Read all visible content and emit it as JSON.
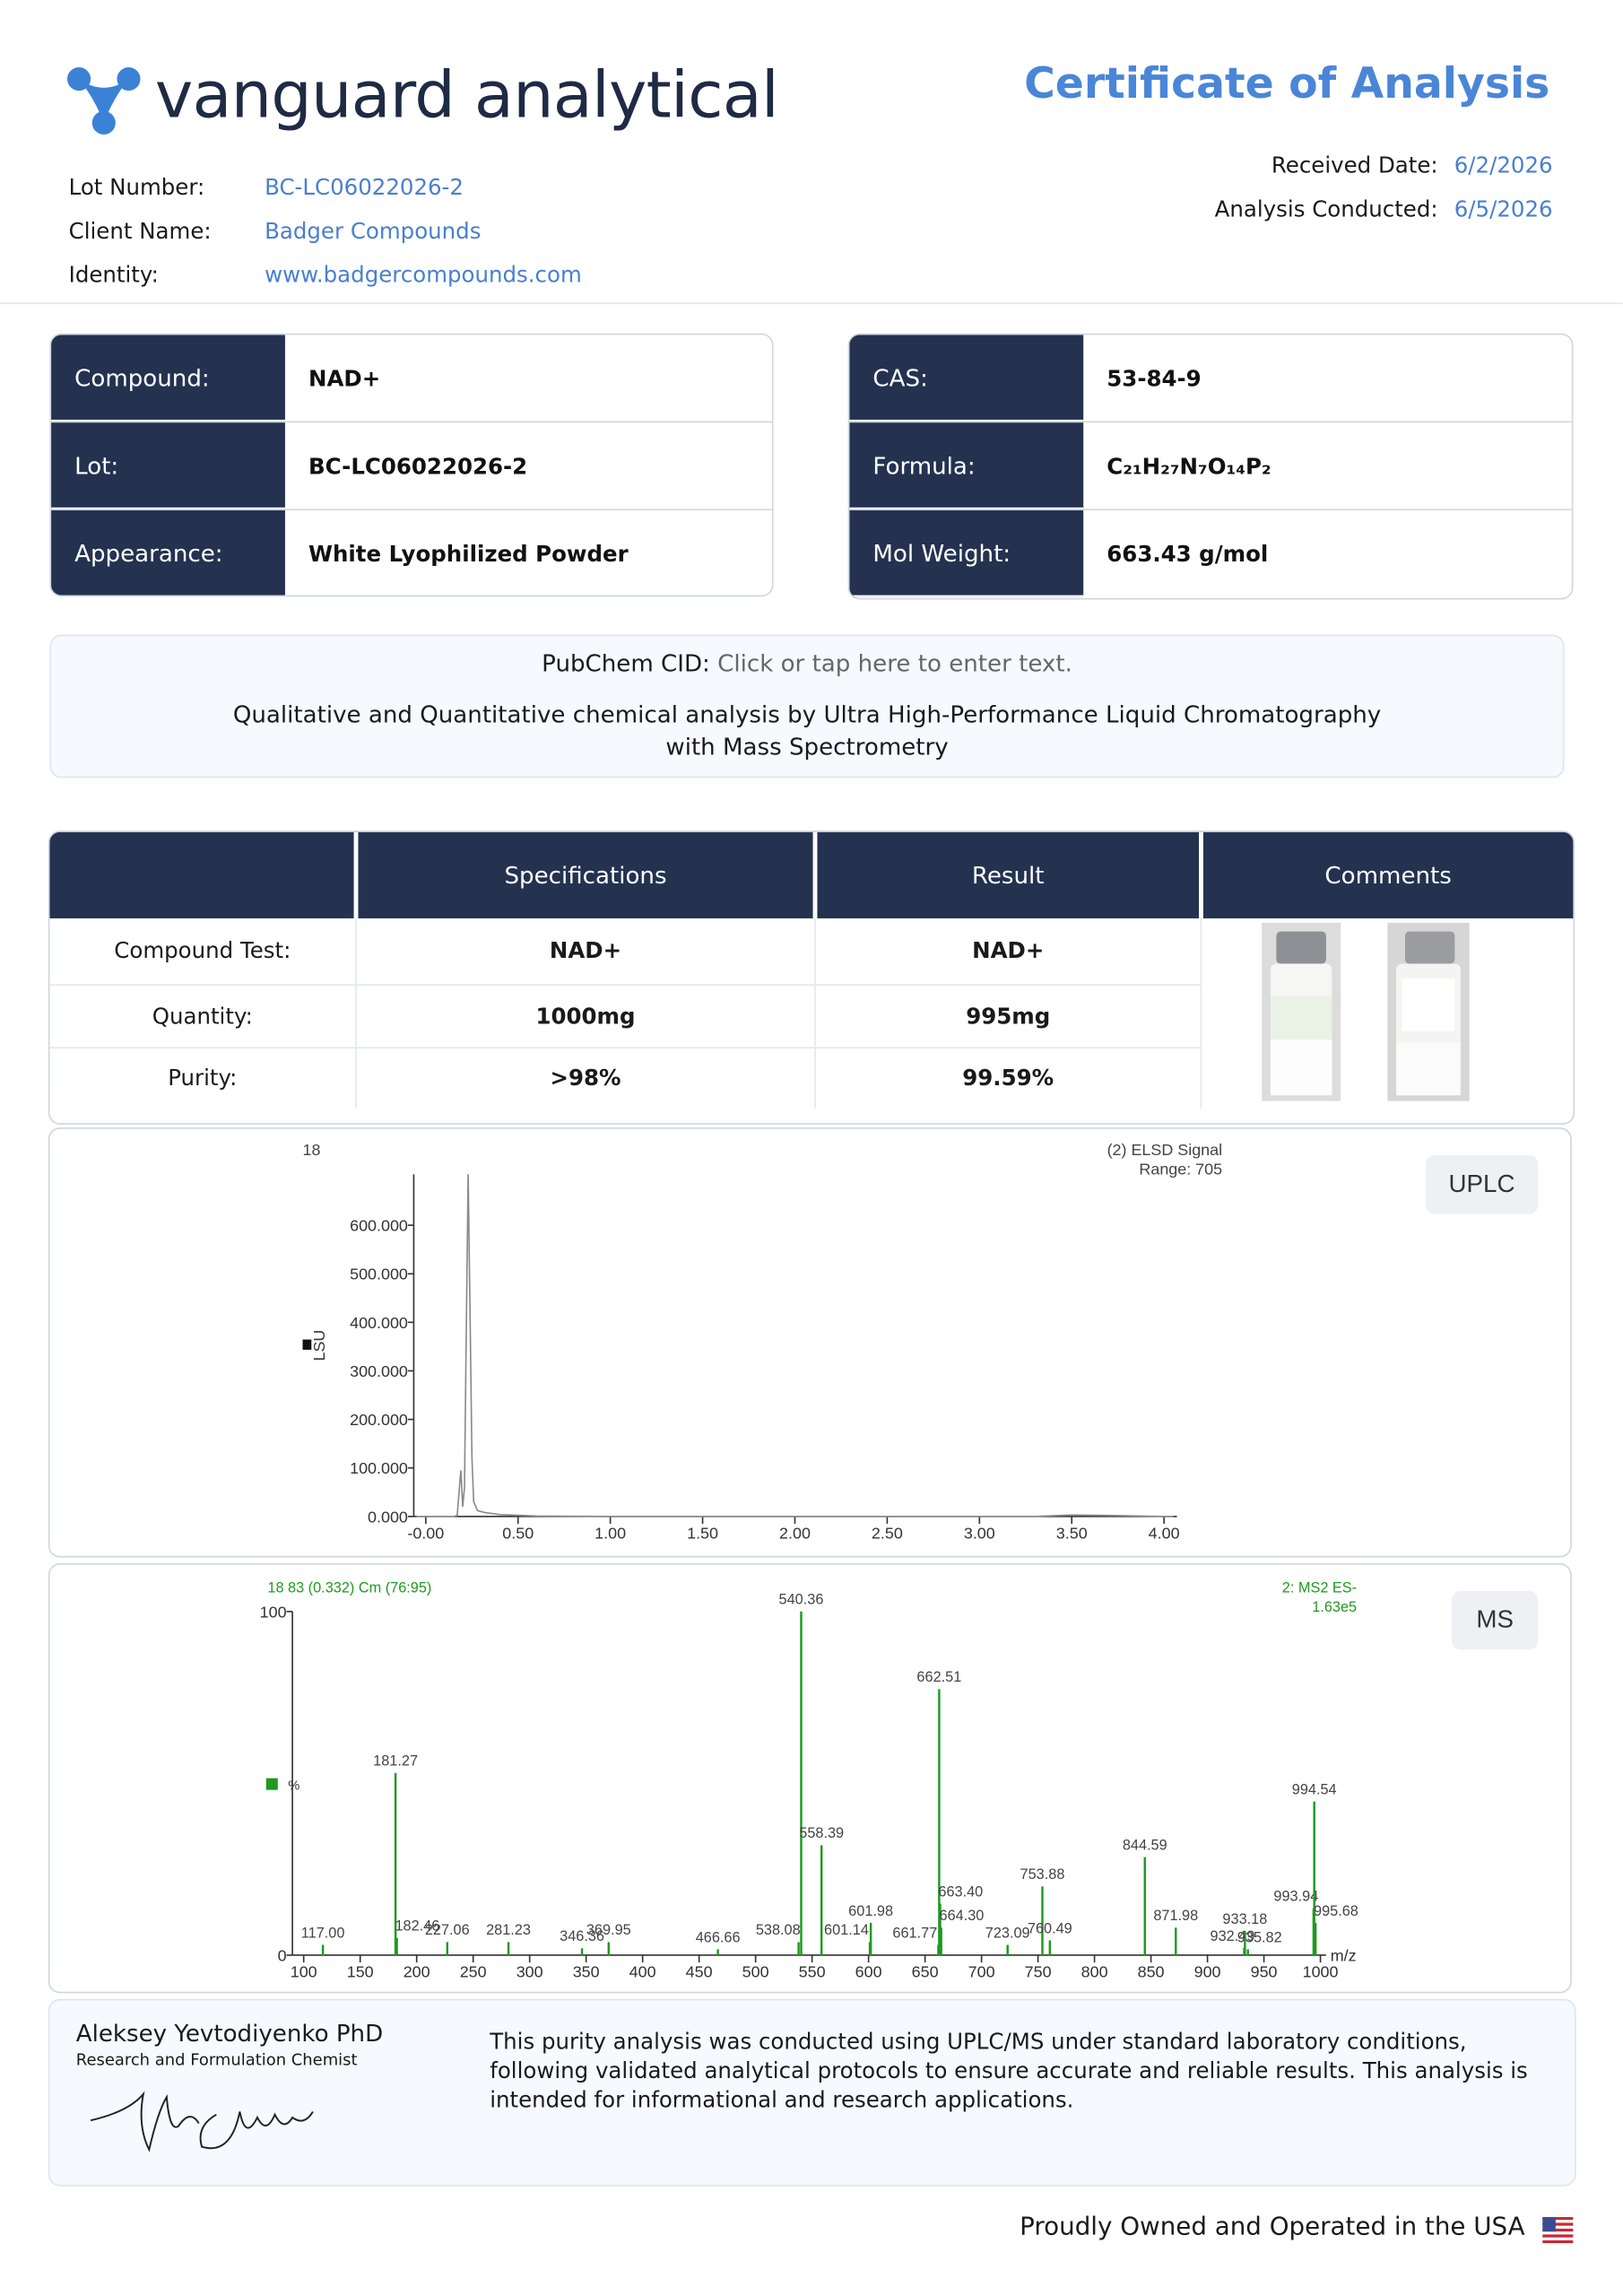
{
  "header": {
    "logo": "vanguard analytical",
    "title": "Certificate of Analysis",
    "fields": [
      {
        "label": "Lot Number:",
        "value": "BC-LC06022026-2"
      },
      {
        "label": "Client Name:",
        "value": "Badger Compounds"
      },
      {
        "label": "Identity:",
        "value": "www.badgercompounds.com"
      }
    ],
    "dates": [
      {
        "label": "Received Date:",
        "value": "6/2/2026"
      },
      {
        "label": "Analysis Conducted:",
        "value": "6/5/2026"
      }
    ]
  },
  "properties": {
    "left": [
      {
        "label": "Compound:",
        "value": "NAD+"
      },
      {
        "label": "Lot:",
        "value": "BC-LC06022026-2"
      },
      {
        "label": "Appearance:",
        "value": "White Lyophilized Powder"
      }
    ],
    "right": [
      {
        "label": "CAS:",
        "value": "53-84-9"
      },
      {
        "label": "Formula:",
        "value": "C₂₁H₂₇N₇O₁₄P₂"
      },
      {
        "label": "Mol Weight:",
        "value": "663.43 g/mol"
      }
    ]
  },
  "pubchem": {
    "label": "PubChem CID:",
    "value": "Click or tap here to enter text."
  },
  "method": "Qualitative and Quantitative chemical analysis by Ultra High-Performance Liquid Chromatography with Mass Spectrometry",
  "results": {
    "headers": [
      "Specifications",
      "Result",
      "Comments"
    ],
    "rows": [
      [
        "Compound Test:",
        "NAD+",
        "NAD+"
      ],
      [
        "Quantity:",
        "1000mg",
        "995mg"
      ],
      [
        "Purity:",
        ">98%",
        "99.59%"
      ]
    ]
  },
  "uplc": {
    "tag": "UPLC",
    "type": "line",
    "run": "18",
    "signal": "(2) ELSD Signal",
    "range": "Range: 705",
    "ylabel": "LSU",
    "color": "#8a8a8a",
    "x": [
      -0.05,
      0.15,
      0.17,
      0.19,
      0.2,
      0.21,
      0.22,
      0.23,
      0.24,
      0.25,
      0.26,
      0.28,
      0.32,
      0.4,
      0.6,
      1.0,
      2.0,
      3.3,
      3.5,
      3.7,
      4.0,
      4.05
    ],
    "values": [
      0,
      0,
      2,
      95,
      20,
      60,
      400,
      705,
      420,
      120,
      30,
      12,
      8,
      4,
      1,
      0,
      0,
      0,
      3,
      2,
      0,
      0
    ],
    "xlim": [
      -0.065,
      4.07
    ],
    "ylim": [
      0,
      705
    ],
    "xticks": [
      {
        "value": 0,
        "label": "-0.00"
      },
      {
        "value": 0.5,
        "label": "0.50"
      },
      {
        "value": 1,
        "label": "1.00"
      },
      {
        "value": 1.5,
        "label": "1.50"
      },
      {
        "value": 2,
        "label": "2.00"
      },
      {
        "value": 2.5,
        "label": "2.50"
      },
      {
        "value": 3,
        "label": "3.00"
      },
      {
        "value": 3.5,
        "label": "3.50"
      },
      {
        "value": 4,
        "label": "4.00"
      }
    ],
    "yticks": [
      {
        "value": 0,
        "label": "0.000"
      },
      {
        "value": 100,
        "label": "100.000"
      },
      {
        "value": 200,
        "label": "200.000"
      },
      {
        "value": 300,
        "label": "300.000"
      },
      {
        "value": 400,
        "label": "400.000"
      },
      {
        "value": 500,
        "label": "500.000"
      },
      {
        "value": 600,
        "label": "600.000"
      }
    ]
  },
  "ms": {
    "tag": "MS",
    "type": "bar",
    "run": "18 83 (0.332) Cm (76:95)",
    "scan": "2: MS2 ES-",
    "intensity": "1.63e5",
    "ylabel": "%",
    "xlabel": "m/z",
    "color": "#1f9a1f",
    "x": [
      117.0,
      181.27,
      182.46,
      227.06,
      281.23,
      346.36,
      369.95,
      466.66,
      538.08,
      540.36,
      558.39,
      601.14,
      601.98,
      661.77,
      662.51,
      663.4,
      664.3,
      723.09,
      753.88,
      760.49,
      844.59,
      871.98,
      932.49,
      933.18,
      935.82,
      993.94,
      994.54,
      995.68
    ],
    "x_labels": [
      "117.00",
      "181.27",
      "182.46",
      "227.06",
      "281.23",
      "346.36",
      "369.95",
      "466.66",
      "538.08",
      "540.36",
      "558.39",
      "601.14",
      "601.98",
      "661.77",
      "662.51",
      "663.40",
      "664.30",
      "723.09",
      "753.88",
      "760.49",
      "844.59",
      "871.98",
      "932.49",
      "933.18",
      "935.82",
      "993.94",
      "994.54",
      "995.68"
    ],
    "values": [
      3,
      53,
      5,
      3.8,
      3.8,
      2,
      3.8,
      1.7,
      3.8,
      100,
      32,
      3.8,
      9.4,
      3,
      77.4,
      15,
      8,
      3,
      20,
      4.3,
      28.5,
      8,
      2.1,
      7,
      1.7,
      13.6,
      44.7,
      9.4
    ],
    "xlim": [
      90,
      1005
    ],
    "ylim": [
      0,
      100
    ],
    "xticks": [
      100,
      150,
      200,
      250,
      300,
      350,
      400,
      450,
      500,
      550,
      600,
      650,
      700,
      750,
      800,
      850,
      900,
      950,
      1000
    ],
    "yticks": [
      0,
      100
    ]
  },
  "signature": {
    "name": "Aleksey Yevtodiyenko PhD",
    "role": "Research and Formulation Chemist",
    "statement": "This purity analysis was conducted using UPLC/MS under standard laboratory conditions, following validated analytical protocols to ensure accurate and reliable results. This analysis is intended for informational and research applications."
  },
  "footer": "Proudly Owned and Operated in the USA"
}
